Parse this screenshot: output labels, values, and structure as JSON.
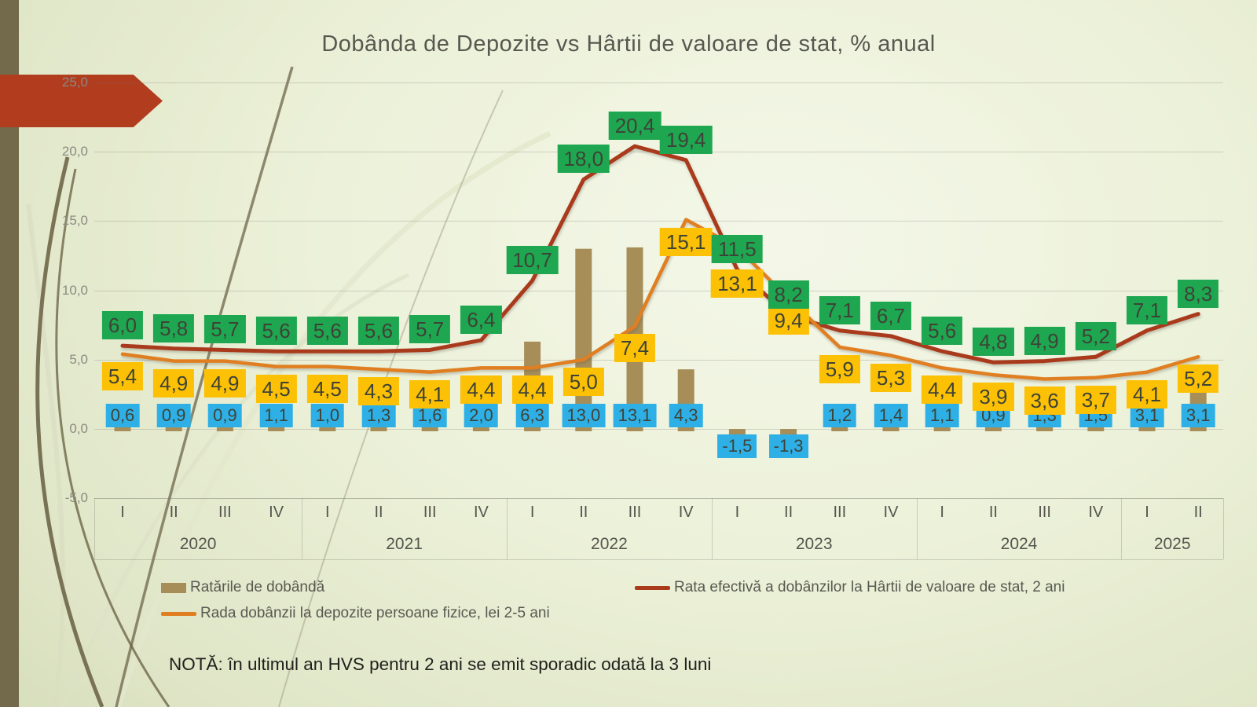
{
  "slide": {
    "title": "Dobânda de Depozite vs Hârtii de valoare de stat, % anual",
    "note": "NOTĂ: în ultimul an HVS pentru 2 ani se emit sporadic odată la 3 luni"
  },
  "colors": {
    "background_light": "#f4f7e8",
    "background_dark": "#d8dfbd",
    "sidebar_bar": "#73694b",
    "accent_arrow": "#b13c1e",
    "bar_series": "#a78e58",
    "hvs_line": "#a93b1d",
    "deposit_line": "#e07f22",
    "label_green_bg": "#1ea750",
    "label_yellow_bg": "#fcc004",
    "label_blue_bg": "#2eb0e6",
    "label_text": "#3e4337",
    "grid": "#c9c9bd"
  },
  "chart_data": {
    "type": "combo-bar-line",
    "title": "Dobânda de Depozite vs Hârtii de valoare de stat, % anual",
    "ylim": [
      -5,
      25
    ],
    "grid": true,
    "y_ticks": [
      25,
      20,
      15,
      10,
      5,
      0,
      -5
    ],
    "years": [
      {
        "label": "2020",
        "quarters": [
          "I",
          "II",
          "III",
          "IV"
        ]
      },
      {
        "label": "2021",
        "quarters": [
          "I",
          "II",
          "III",
          "IV"
        ]
      },
      {
        "label": "2022",
        "quarters": [
          "I",
          "II",
          "III",
          "IV"
        ]
      },
      {
        "label": "2023",
        "quarters": [
          "I",
          "II",
          "III",
          "IV"
        ]
      },
      {
        "label": "2024",
        "quarters": [
          "I",
          "II",
          "III",
          "IV"
        ]
      },
      {
        "label": "2025",
        "quarters": [
          "I",
          "II"
        ]
      }
    ],
    "series": [
      {
        "name": "Ratările de dobândă",
        "type": "bar",
        "color": "#a78e58",
        "label_bg": "#2eb0e6",
        "values": [
          0.6,
          0.9,
          0.9,
          1.1,
          1.0,
          1.3,
          1.6,
          2.0,
          6.3,
          13.0,
          13.1,
          4.3,
          -1.5,
          -1.3,
          1.2,
          1.4,
          1.1,
          0.9,
          1.3,
          1.5,
          3.1,
          3.1
        ]
      },
      {
        "name": "Rata efectivă a dobânzilor la Hârtii de valoare de stat, 2 ani",
        "type": "line",
        "color": "#a93b1d",
        "label_bg": "#1ea750",
        "values": [
          6.0,
          5.8,
          5.7,
          5.6,
          5.6,
          5.6,
          5.7,
          6.4,
          10.7,
          18.0,
          20.4,
          19.4,
          11.5,
          8.2,
          7.1,
          6.7,
          5.6,
          4.8,
          4.9,
          5.2,
          7.1,
          8.3
        ]
      },
      {
        "name": "Rada dobânzii la depozite persoane fizice, lei 2-5 ani",
        "type": "line",
        "color": "#e07f22",
        "label_bg": "#fcc004",
        "values": [
          5.4,
          4.9,
          4.9,
          4.5,
          4.5,
          4.3,
          4.1,
          4.4,
          4.4,
          5.0,
          7.4,
          15.1,
          13.1,
          9.4,
          5.9,
          5.3,
          4.4,
          3.9,
          3.6,
          3.7,
          4.1,
          5.2
        ]
      }
    ]
  }
}
